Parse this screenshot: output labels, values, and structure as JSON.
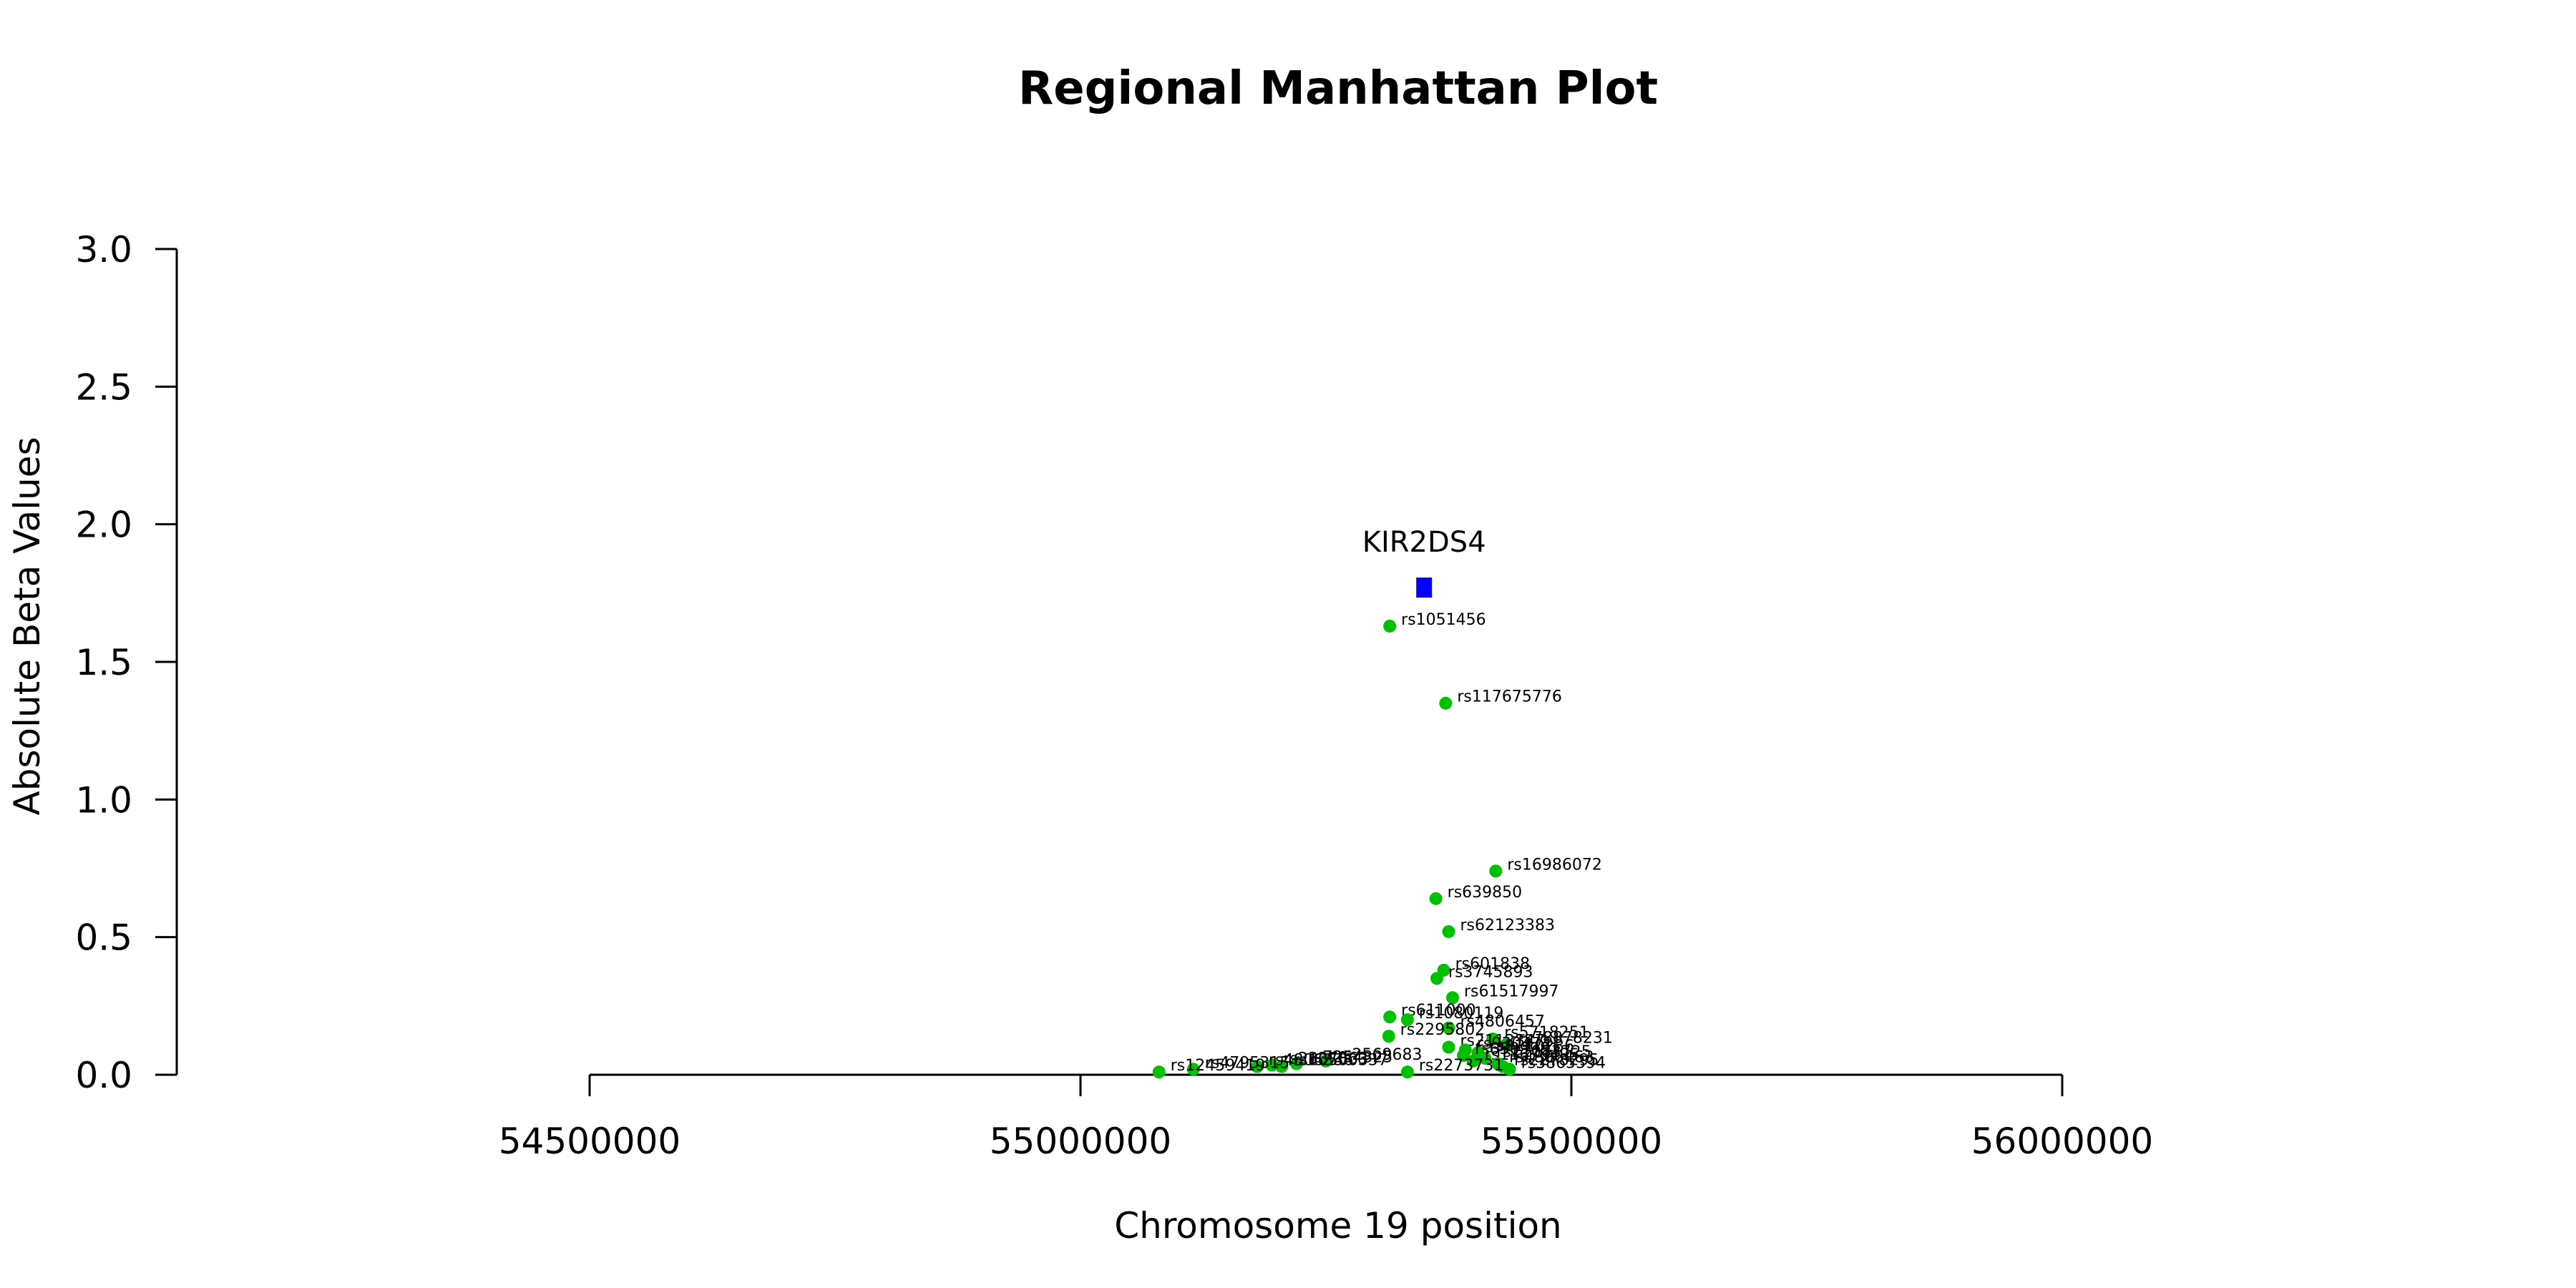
{
  "chart_data": {
    "type": "scatter",
    "title": "Regional Manhattan Plot",
    "xlabel": "Chromosome 19 position",
    "ylabel": "Absolute Beta Values",
    "xlim": [
      54500000,
      56000000
    ],
    "ylim": [
      0.0,
      3.0
    ],
    "x_ticks": [
      54500000,
      55000000,
      55500000,
      56000000
    ],
    "x_tick_labels": [
      "54500000",
      "55000000",
      "55500000",
      "56000000"
    ],
    "y_ticks": [
      0.0,
      0.5,
      1.0,
      1.5,
      2.0,
      2.5,
      3.0
    ],
    "y_tick_labels": [
      "0.0",
      "0.5",
      "1.0",
      "1.5",
      "2.0",
      "2.5",
      "3.0"
    ],
    "grid": false,
    "gene": {
      "name": "KIR2DS4",
      "x": 55350000,
      "y": 1.77,
      "color": "#0000ff"
    },
    "snp_color": "#00c000",
    "points": [
      {
        "label": "rs1051456",
        "x": 55315000,
        "y": 1.63
      },
      {
        "label": "rs117675776",
        "x": 55372000,
        "y": 1.35
      },
      {
        "label": "rs16986072",
        "x": 55423000,
        "y": 0.74
      },
      {
        "label": "rs639850",
        "x": 55362000,
        "y": 0.64
      },
      {
        "label": "rs62123383",
        "x": 55375000,
        "y": 0.52
      },
      {
        "label": "rs601838",
        "x": 55370000,
        "y": 0.38
      },
      {
        "label": "rs3745893",
        "x": 55363000,
        "y": 0.35
      },
      {
        "label": "rs61517997",
        "x": 55379000,
        "y": 0.28
      },
      {
        "label": "rs611000",
        "x": 55315000,
        "y": 0.21
      },
      {
        "label": "rs1080119",
        "x": 55333000,
        "y": 0.2
      },
      {
        "label": "rs4806457",
        "x": 55375000,
        "y": 0.17
      },
      {
        "label": "rs2295802",
        "x": 55314000,
        "y": 0.14
      },
      {
        "label": "rs5718251",
        "x": 55420000,
        "y": 0.13
      },
      {
        "label": "rs78878231",
        "x": 55434000,
        "y": 0.11
      },
      {
        "label": "rs2112347",
        "x": 55375000,
        "y": 0.1
      },
      {
        "label": "rs9304741",
        "x": 55392000,
        "y": 0.09
      },
      {
        "label": "rs8110236",
        "x": 55405000,
        "y": 0.08
      },
      {
        "label": "rs6509981",
        "x": 55390000,
        "y": 0.07
      },
      {
        "label": "rs11083725",
        "x": 55412000,
        "y": 0.06
      },
      {
        "label": "rs11670495",
        "x": 55400000,
        "y": 0.05
      },
      {
        "label": "rs4806463",
        "x": 55425000,
        "y": 0.04
      },
      {
        "label": "rs2569683",
        "x": 55250000,
        "y": 0.05
      },
      {
        "label": "rs7254325",
        "x": 55220000,
        "y": 0.04
      },
      {
        "label": "rs2337863",
        "x": 55195000,
        "y": 0.035
      },
      {
        "label": "rs10500337",
        "x": 55205000,
        "y": 0.03
      },
      {
        "label": "rs4806336",
        "x": 55180000,
        "y": 0.03
      },
      {
        "label": "rs2278295",
        "x": 55430000,
        "y": 0.03
      },
      {
        "label": "rs3865394",
        "x": 55437000,
        "y": 0.02
      },
      {
        "label": "rs2273731",
        "x": 55333000,
        "y": 0.01
      },
      {
        "label": "rs4795315",
        "x": 55115000,
        "y": 0.02
      },
      {
        "label": "rs12459419",
        "x": 55080000,
        "y": 0.01
      }
    ]
  }
}
